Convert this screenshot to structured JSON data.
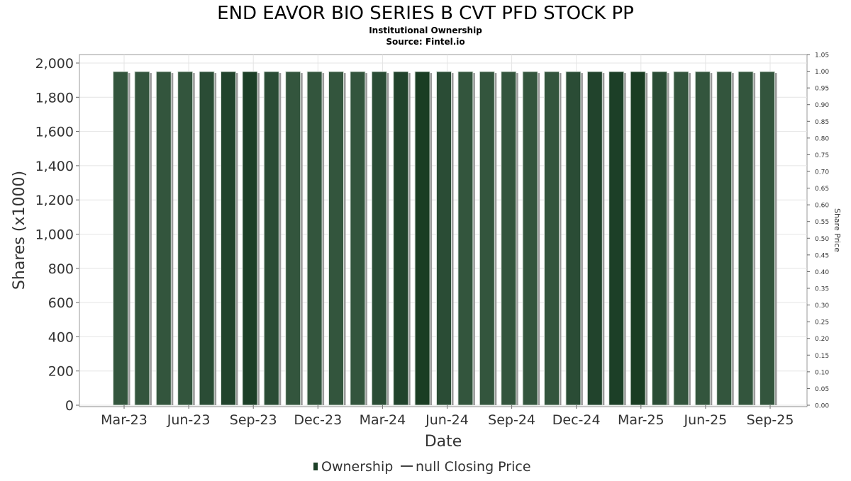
{
  "chart_data": {
    "type": "bar",
    "title": "END EAVOR BIO SERIES B CVT PFD STOCK PP",
    "subtitle": "Institutional Ownership",
    "source": "Source: Fintel.io",
    "xlabel": "Date",
    "ylabel": "Shares (x1000)",
    "y2label": "Share Price",
    "ylim": [
      0,
      2050
    ],
    "y2lim": [
      0,
      1.05
    ],
    "yticks": [
      "0",
      "200",
      "400",
      "600",
      "800",
      "1,000",
      "1,200",
      "1,400",
      "1,600",
      "1,800",
      "2,000"
    ],
    "y2ticks": [
      "0.00",
      "0.05",
      "0.10",
      "0.15",
      "0.20",
      "0.25",
      "0.30",
      "0.35",
      "0.40",
      "0.45",
      "0.50",
      "0.55",
      "0.60",
      "0.65",
      "0.70",
      "0.75",
      "0.80",
      "0.85",
      "0.90",
      "0.95",
      "1.00",
      "1.05"
    ],
    "xticks": [
      "Mar-23",
      "Jun-23",
      "Sep-23",
      "Dec-23",
      "Mar-24",
      "Jun-24",
      "Sep-24",
      "Dec-24",
      "Mar-25",
      "Jun-25",
      "Sep-25"
    ],
    "grid": true,
    "series": [
      {
        "name": "Ownership",
        "values": [
          1950,
          1950,
          1950,
          1950,
          1950,
          1950,
          1950,
          1950,
          1950,
          1950,
          1950,
          1950,
          1950,
          1950,
          1950,
          1950,
          1950,
          1950,
          1950,
          1950,
          1950,
          1950,
          1950,
          1950,
          1950,
          1950,
          1950,
          1950,
          1950,
          1950,
          1950
        ],
        "colors": [
          "#33553d",
          "#33553d",
          "#33553d",
          "#33553d",
          "#2a4c35",
          "#21432c",
          "#1c3f27",
          "#2a4c35",
          "#33553d",
          "#33553d",
          "#33553d",
          "#33553d",
          "#2a4c35",
          "#21432c",
          "#1a3d23",
          "#2a4c35",
          "#33553d",
          "#33553d",
          "#33553d",
          "#33553d",
          "#33553d",
          "#2a4c35",
          "#21432c",
          "#1c3f27",
          "#1a3d23",
          "#2a4c35",
          "#33553d",
          "#33553d",
          "#33553d",
          "#33553d",
          "#33553d"
        ]
      },
      {
        "name": "null Closing Price",
        "values": []
      }
    ],
    "legend": [
      {
        "label": "Ownership",
        "color": "#1c3f27"
      },
      {
        "label": "null Closing Price",
        "color": "#444444"
      }
    ],
    "legend_position": "bottom"
  }
}
